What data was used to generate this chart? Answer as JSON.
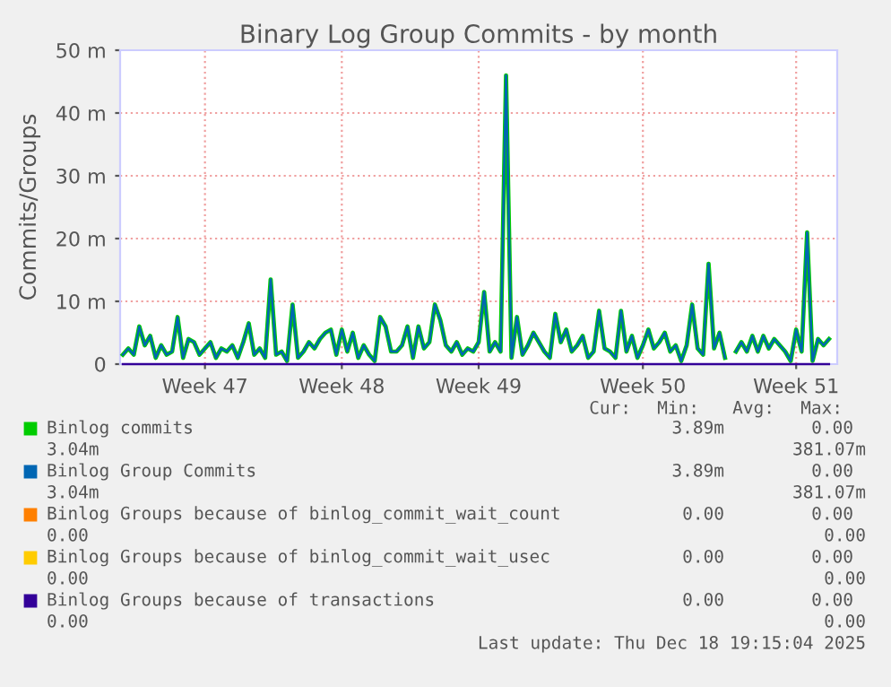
{
  "chart_data": {
    "type": "line",
    "title": "Binary Log Group Commits - by month",
    "ylabel": "Commits/Groups",
    "categories": [
      null,
      null,
      null,
      null,
      null,
      null,
      null,
      null,
      null,
      null,
      null,
      null,
      null,
      null,
      null,
      "Week 47",
      null,
      null,
      null,
      null,
      null,
      null,
      null,
      null,
      null,
      null,
      null,
      null,
      null,
      null,
      null,
      null,
      null,
      null,
      null,
      null,
      null,
      null,
      null,
      null,
      "Week 48",
      null,
      null,
      null,
      null,
      null,
      null,
      null,
      null,
      null,
      null,
      null,
      null,
      null,
      null,
      null,
      null,
      null,
      null,
      null,
      null,
      null,
      null,
      null,
      null,
      "Week 49",
      null,
      null,
      null,
      null,
      null,
      null,
      null,
      null,
      null,
      null,
      null,
      null,
      null,
      null,
      null,
      null,
      null,
      null,
      null,
      null,
      null,
      null,
      null,
      null,
      null,
      null,
      null,
      null,
      null,
      "Week 50",
      null,
      null,
      null,
      null,
      null,
      null,
      null,
      null,
      null,
      null,
      null,
      null,
      null,
      null,
      null,
      null,
      null,
      null,
      null,
      null,
      null,
      null,
      null,
      null,
      null,
      null,
      null,
      "Week 51",
      null,
      null,
      null,
      null,
      null,
      null
    ],
    "series": [
      {
        "name": "Binlog commits",
        "color": "#00cc00",
        "values": [
          1.5,
          2.5,
          1.5,
          6,
          3,
          4.5,
          1,
          3,
          1.5,
          2,
          7.5,
          1,
          4,
          3.5,
          1.5,
          2.5,
          3.5,
          1,
          2.5,
          2,
          3,
          1,
          3.5,
          6.5,
          1.5,
          2.5,
          1,
          13.5,
          1.5,
          2,
          0.5,
          9.5,
          1,
          2,
          3.5,
          2.5,
          4,
          5,
          5.5,
          1.5,
          5.5,
          2,
          5,
          1,
          3,
          1.5,
          0.5,
          7.5,
          6,
          2,
          2,
          3,
          6,
          1,
          6,
          2.5,
          3.5,
          9.5,
          7,
          3,
          2,
          3.5,
          1.5,
          2.5,
          2,
          3.5,
          11.5,
          2,
          3.5,
          2,
          46,
          1,
          7.5,
          1.5,
          3,
          5,
          3.5,
          2,
          1,
          8,
          3.5,
          5.5,
          2,
          3,
          4.5,
          1,
          2,
          8.5,
          2.5,
          2,
          1,
          8.5,
          2,
          4.5,
          1,
          3,
          5.5,
          2.5,
          3.5,
          5,
          2,
          3,
          0.5,
          3,
          9.5,
          2.5,
          1.5,
          16,
          2.5,
          5,
          1,
          null,
          2,
          3.5,
          2,
          4.5,
          2,
          4.5,
          2.5,
          4,
          3,
          2,
          0.5,
          5.5,
          2,
          21,
          0.5,
          4,
          3,
          4
        ]
      },
      {
        "name": "Binlog Group Commits",
        "color": "#0066b3",
        "values": [
          1.5,
          2.5,
          1.5,
          6,
          3,
          4.5,
          1,
          3,
          1.5,
          2,
          7.5,
          1,
          4,
          3.5,
          1.5,
          2.5,
          3.5,
          1,
          2.5,
          2,
          3,
          1,
          3.5,
          6.5,
          1.5,
          2.5,
          1,
          13.5,
          1.5,
          2,
          0.5,
          9.5,
          1,
          2,
          3.5,
          2.5,
          4,
          5,
          5.5,
          1.5,
          5.5,
          2,
          5,
          1,
          3,
          1.5,
          0.5,
          7.5,
          6,
          2,
          2,
          3,
          6,
          1,
          6,
          2.5,
          3.5,
          9.5,
          7,
          3,
          2,
          3.5,
          1.5,
          2.5,
          2,
          3.5,
          11.5,
          2,
          3.5,
          2,
          46,
          1,
          7.5,
          1.5,
          3,
          5,
          3.5,
          2,
          1,
          8,
          3.5,
          5.5,
          2,
          3,
          4.5,
          1,
          2,
          8.5,
          2.5,
          2,
          1,
          8.5,
          2,
          4.5,
          1,
          3,
          5.5,
          2.5,
          3.5,
          5,
          2,
          3,
          0.5,
          3,
          9.5,
          2.5,
          1.5,
          16,
          2.5,
          5,
          1,
          null,
          2,
          3.5,
          2,
          4.5,
          2,
          4.5,
          2.5,
          4,
          3,
          2,
          0.5,
          5.5,
          2,
          21,
          0.5,
          4,
          3,
          4
        ]
      },
      {
        "name": "Binlog Groups because of binlog_commit_wait_count",
        "color": "#ff8000",
        "values": [
          null,
          null,
          null,
          null,
          null,
          null,
          null,
          null,
          null,
          null,
          null,
          null,
          null,
          null,
          null,
          null,
          null,
          null,
          null,
          null,
          null,
          null,
          null,
          null,
          null,
          null,
          null,
          null,
          null,
          null,
          null,
          null,
          null,
          null,
          null,
          null,
          null,
          null,
          null,
          null,
          null,
          null,
          null,
          null,
          null,
          null,
          null,
          null,
          null,
          null,
          null,
          null,
          null,
          null,
          null,
          null,
          null,
          null,
          null,
          null,
          null,
          null,
          null,
          null,
          null,
          null,
          null,
          null,
          null,
          null,
          null,
          null,
          null,
          null,
          null,
          null,
          null,
          null,
          null,
          null,
          null,
          null,
          null,
          null,
          null,
          null,
          null,
          null,
          null,
          null,
          null,
          null,
          null,
          null,
          null,
          null,
          null,
          null,
          null,
          null,
          null,
          null,
          null,
          null,
          null,
          null,
          null,
          null,
          null,
          null,
          null,
          null,
          null,
          null,
          null,
          null,
          null,
          null,
          null,
          null,
          null,
          null,
          null,
          null,
          null,
          null,
          null,
          null,
          null,
          null
        ]
      },
      {
        "name": "Binlog Groups because of binlog_commit_wait_usec",
        "color": "#ffcc00",
        "values": [
          null,
          null,
          null,
          null,
          null,
          null,
          null,
          null,
          null,
          null,
          null,
          null,
          null,
          null,
          null,
          null,
          null,
          null,
          null,
          null,
          null,
          null,
          null,
          null,
          null,
          null,
          null,
          null,
          null,
          null,
          null,
          null,
          null,
          null,
          null,
          null,
          null,
          null,
          null,
          null,
          null,
          null,
          null,
          null,
          null,
          null,
          null,
          null,
          null,
          null,
          null,
          null,
          null,
          null,
          null,
          null,
          null,
          null,
          null,
          null,
          null,
          null,
          null,
          null,
          null,
          null,
          null,
          null,
          null,
          null,
          null,
          null,
          null,
          null,
          null,
          null,
          null,
          null,
          null,
          null,
          null,
          null,
          null,
          null,
          null,
          null,
          null,
          null,
          null,
          null,
          null,
          null,
          null,
          null,
          null,
          null,
          null,
          null,
          null,
          null,
          null,
          null,
          null,
          null,
          null,
          null,
          null,
          null,
          null,
          null,
          null,
          null,
          null,
          null,
          null,
          null,
          null,
          null,
          null,
          null,
          null,
          null,
          null,
          null,
          null,
          null,
          null,
          null,
          null,
          null
        ]
      },
      {
        "name": "Binlog Groups because of transactions",
        "color": "#330099",
        "values": [
          0,
          0,
          0,
          0,
          0,
          0,
          0,
          0,
          0,
          0,
          0,
          0,
          0,
          0,
          0,
          0,
          0,
          0,
          0,
          0,
          0,
          0,
          0,
          0,
          0,
          0,
          0,
          0,
          0,
          0,
          0,
          0,
          0,
          0,
          0,
          0,
          0,
          0,
          0,
          0,
          0,
          0,
          0,
          0,
          0,
          0,
          0,
          0,
          0,
          0,
          0,
          0,
          0,
          0,
          0,
          0,
          0,
          0,
          0,
          0,
          0,
          0,
          0,
          0,
          0,
          0,
          0,
          0,
          0,
          0,
          0,
          0,
          0,
          0,
          0,
          0,
          0,
          0,
          0,
          0,
          0,
          0,
          0,
          0,
          0,
          0,
          0,
          0,
          0,
          0,
          0,
          0,
          0,
          0,
          0,
          0,
          0,
          0,
          0,
          0,
          0,
          0,
          0,
          0,
          0,
          0,
          0,
          0,
          0,
          0,
          0,
          0,
          0,
          0,
          0,
          0,
          0,
          0,
          0,
          0,
          0,
          0,
          0,
          0,
          0,
          0,
          0,
          0,
          0,
          0
        ]
      }
    ],
    "ylim": [
      0,
      50
    ],
    "yticks": [
      0,
      {
        "value": 10,
        "label": "10 m"
      },
      {
        "value": 20,
        "label": "20 m"
      },
      {
        "value": 30,
        "label": "30 m"
      },
      {
        "value": 40,
        "label": "40 m"
      },
      {
        "value": 50,
        "label": "50 m"
      }
    ],
    "grid": true,
    "legend": "bottom",
    "annotations": [
      "Cur:",
      "Min:",
      "Avg:",
      "Max:",
      "3.89m",
      "0.00",
      "3.04m",
      "381.07m",
      "3.89m",
      "0.00",
      "3.04m",
      "381.07m",
      "0.00",
      "0.00",
      "0.00",
      "0.00",
      "0.00",
      "0.00",
      "0.00",
      "0.00",
      "0.00",
      "0.00",
      "0.00",
      "0.00",
      "Last update: Thu Dec 18 19:15:04 2025"
    ]
  }
}
